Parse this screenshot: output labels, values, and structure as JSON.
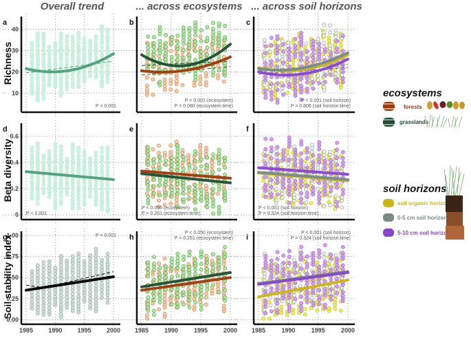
{
  "column_titles": [
    "Overall trend",
    "... across ecosystems",
    "... across soil horizons"
  ],
  "colors": {
    "overall_point": "#c8f2df",
    "overall_line": "#4e9e7c",
    "stability_point": "#c8dcd3",
    "stability_line": "#000000",
    "forests": "#9a3a0e",
    "forests_point": "#f4c9a2",
    "grasslands": "#1e4d33",
    "grasslands_point": "#a9e89a",
    "organic": "#c9b51c",
    "organic_point": "#ecec4a",
    "cm0_5": "#778b86",
    "cm0_5_point": "#eef2f1",
    "cm5_10": "#8648c8",
    "cm5_10_point": "#cf96e8"
  },
  "legend": {
    "ecosystems": {
      "title": "ecosystems",
      "items": [
        {
          "label": "forests",
          "color": "#9a3a0e"
        },
        {
          "label": "grasslands",
          "color": "#1e4d33"
        }
      ]
    },
    "soil_horizons": {
      "title": "soil horizons",
      "items": [
        {
          "label": "soil organic horizon",
          "color": "#c9b51c"
        },
        {
          "label": "0-5 cm soil horizon",
          "color": "#778b86"
        },
        {
          "label": "5-10 cm soil horizon",
          "color": "#8648c8"
        }
      ]
    }
  },
  "chart_data": [
    {
      "panel": "a",
      "type": "scatter",
      "row_label": "Richness",
      "xlim": [
        1985,
        2000
      ],
      "ylim": [
        2,
        46
      ],
      "yticks": [
        10,
        20,
        30,
        40
      ],
      "xticks": [
        1985,
        1990,
        1995,
        2000
      ],
      "annotation": [
        "P < 0.001"
      ],
      "fits": [
        {
          "name": "overall",
          "kind": "quadratic",
          "x": [
            1985,
            1990,
            1995,
            2000
          ],
          "y": [
            21.5,
            20,
            21.5,
            28.5
          ]
        }
      ],
      "dashed_fits": [
        {
          "name": "overall",
          "x": [
            1985,
            2000
          ],
          "y": [
            19.5,
            25
          ]
        }
      ]
    },
    {
      "panel": "b",
      "type": "scatter",
      "row_label": "Richness",
      "xlim": [
        1985,
        2000
      ],
      "ylim": [
        2,
        46
      ],
      "yticks": [
        10,
        20,
        30,
        40
      ],
      "xticks": [
        1985,
        1990,
        1995,
        2000
      ],
      "annotation": [
        "P < 0.001 (ecosystem)",
        "P = 0.080 (ecosystem:time)"
      ],
      "fits": [
        {
          "name": "grasslands",
          "kind": "quadratic",
          "x": [
            1985,
            1990,
            1995,
            2000
          ],
          "y": [
            28,
            23,
            24,
            33
          ]
        },
        {
          "name": "forests",
          "kind": "quadratic",
          "x": [
            1985,
            1990,
            1995,
            2000
          ],
          "y": [
            20.5,
            20,
            21,
            27
          ]
        }
      ],
      "dashed_fits": [
        {
          "name": "grasslands",
          "x": [
            1985,
            2000
          ],
          "y": [
            23,
            25
          ]
        },
        {
          "name": "forests",
          "x": [
            1985,
            2000
          ],
          "y": [
            18.5,
            22.5
          ]
        }
      ]
    },
    {
      "panel": "c",
      "type": "scatter",
      "row_label": "Richness",
      "xlim": [
        1985,
        2000
      ],
      "ylim": [
        2,
        46
      ],
      "yticks": [
        10,
        20,
        30,
        40
      ],
      "xticks": [
        1985,
        1990,
        1995,
        2000
      ],
      "annotation": [
        "P < 0.001 (soil horizon)",
        "P = 0.806 (soil horizon:time)"
      ],
      "fits": [
        {
          "name": "organic",
          "kind": "quadratic",
          "x": [
            1985,
            1990,
            1995,
            2000
          ],
          "y": [
            22,
            20.5,
            22,
            28
          ]
        },
        {
          "name": "cm0_5",
          "kind": "quadratic",
          "x": [
            1985,
            1990,
            1995,
            2000
          ],
          "y": [
            21.5,
            21,
            22.5,
            29
          ]
        },
        {
          "name": "cm5_10",
          "kind": "quadratic",
          "x": [
            1985,
            1990,
            1995,
            2000
          ],
          "y": [
            20,
            18.5,
            19.5,
            26
          ]
        }
      ],
      "dashed_fits": [
        {
          "name": "cm0_5",
          "x": [
            1985,
            2000
          ],
          "y": [
            20.5,
            23.5
          ]
        },
        {
          "name": "cm5_10",
          "x": [
            1985,
            2000
          ],
          "y": [
            19,
            22
          ]
        }
      ]
    },
    {
      "panel": "d",
      "type": "scatter",
      "row_label": "Beta diversity",
      "xlim": [
        1985,
        2000
      ],
      "ylim": [
        -0.02,
        0.7
      ],
      "yticks": [
        0.0,
        0.2,
        0.4,
        0.6
      ],
      "xticks": [
        1985,
        1990,
        1995,
        2000
      ],
      "annotation": [
        "P < 0.001"
      ],
      "fits": [
        {
          "name": "overall",
          "kind": "linear",
          "x": [
            1985,
            2000
          ],
          "y": [
            0.33,
            0.27
          ]
        }
      ]
    },
    {
      "panel": "e",
      "type": "scatter",
      "row_label": "Beta diversity",
      "xlim": [
        1985,
        2000
      ],
      "ylim": [
        -0.02,
        0.7
      ],
      "yticks": [
        0.0,
        0.2,
        0.4,
        0.6
      ],
      "xticks": [
        1985,
        1990,
        1995,
        2000
      ],
      "annotation": [
        "P < 0.050 (ecosystem)",
        "P = 0.261 (ecosystem:time)"
      ],
      "fits": [
        {
          "name": "forests",
          "kind": "linear",
          "x": [
            1985,
            2000
          ],
          "y": [
            0.335,
            0.28
          ]
        },
        {
          "name": "grasslands",
          "kind": "linear",
          "x": [
            1985,
            2000
          ],
          "y": [
            0.315,
            0.245
          ]
        }
      ]
    },
    {
      "panel": "f",
      "type": "scatter",
      "row_label": "Beta diversity",
      "xlim": [
        1985,
        2000
      ],
      "ylim": [
        -0.02,
        0.7
      ],
      "yticks": [
        0.0,
        0.2,
        0.4,
        0.6
      ],
      "xticks": [
        1985,
        1990,
        1995,
        2000
      ],
      "annotation": [
        "P < 0.001 (soil horizon)",
        "P = 0.324 (soil horizon:time)"
      ],
      "fits": [
        {
          "name": "cm5_10",
          "kind": "linear",
          "x": [
            1985,
            2000
          ],
          "y": [
            0.36,
            0.31
          ]
        },
        {
          "name": "organic",
          "kind": "linear",
          "x": [
            1985,
            2000
          ],
          "y": [
            0.32,
            0.26
          ]
        },
        {
          "name": "cm0_5",
          "kind": "linear",
          "x": [
            1985,
            2000
          ],
          "y": [
            0.325,
            0.27
          ]
        }
      ]
    },
    {
      "panel": "g",
      "type": "scatter",
      "row_label": "Soil stability index",
      "xlim": [
        1985,
        2000
      ],
      "ylim": [
        -0.03,
        1.05
      ],
      "yticks": [
        0.0,
        0.25,
        0.5,
        0.75,
        1.0
      ],
      "ytick_labels": [
        "0.00",
        "0.25",
        "0.50",
        "0.75",
        "1.00"
      ],
      "xticks": [
        1985,
        1990,
        1995,
        2000
      ],
      "annotation": [
        "P < 0.001"
      ],
      "fits": [
        {
          "name": "stability",
          "kind": "linear",
          "x": [
            1985,
            2000
          ],
          "y": [
            0.35,
            0.51
          ]
        }
      ],
      "dashed_fits": [
        {
          "name": "stability",
          "x": [
            1985,
            1988,
            2000
          ],
          "y": [
            0.41,
            0.38,
            0.57
          ]
        }
      ]
    },
    {
      "panel": "h",
      "type": "scatter",
      "row_label": "Soil stability index",
      "xlim": [
        1985,
        2000
      ],
      "ylim": [
        -0.03,
        1.05
      ],
      "yticks": [
        0.0,
        0.25,
        0.5,
        0.75,
        1.0
      ],
      "xticks": [
        1985,
        1990,
        1995,
        2000
      ],
      "annotation": [
        "P < 0.050 (ecosystem)",
        "P = 0.261 (ecosystem:time)"
      ],
      "fits": [
        {
          "name": "grasslands",
          "kind": "linear",
          "x": [
            1985,
            2000
          ],
          "y": [
            0.39,
            0.56
          ]
        },
        {
          "name": "forests",
          "kind": "linear",
          "x": [
            1985,
            2000
          ],
          "y": [
            0.35,
            0.5
          ]
        }
      ]
    },
    {
      "panel": "i",
      "type": "scatter",
      "row_label": "Soil stability index",
      "xlim": [
        1985,
        2000
      ],
      "ylim": [
        -0.03,
        1.05
      ],
      "yticks": [
        0.0,
        0.25,
        0.5,
        0.75,
        1.0
      ],
      "xticks": [
        1985,
        1990,
        1995,
        2000
      ],
      "annotation": [
        "P < 0.001 (soil horizon)",
        "P = 0.324 (soil horizon:time)"
      ],
      "fits": [
        {
          "name": "cm0_5",
          "kind": "linear",
          "x": [
            1985,
            2000
          ],
          "y": [
            0.43,
            0.57
          ]
        },
        {
          "name": "cm5_10",
          "kind": "linear",
          "x": [
            1985,
            2000
          ],
          "y": [
            0.42,
            0.56
          ]
        },
        {
          "name": "organic",
          "kind": "linear",
          "x": [
            1985,
            2000
          ],
          "y": [
            0.27,
            0.47
          ]
        }
      ]
    }
  ]
}
